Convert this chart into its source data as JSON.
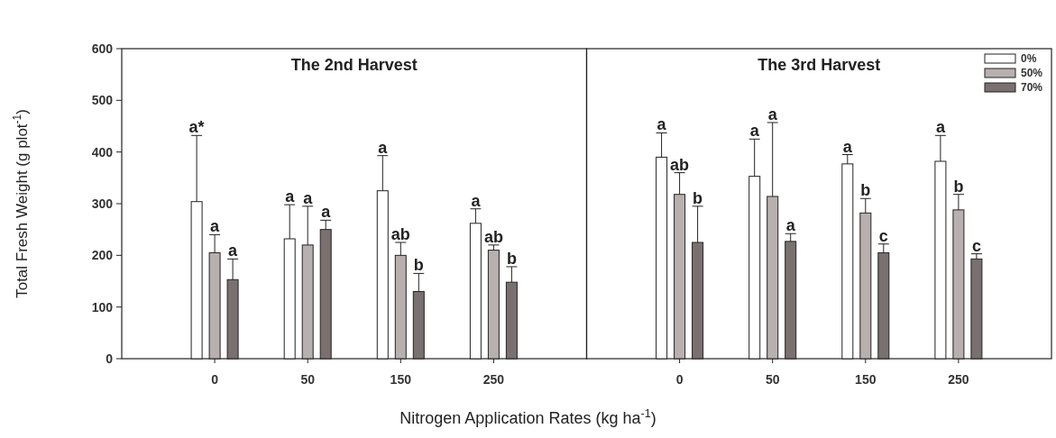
{
  "chart_data": [
    {
      "type": "bar",
      "title": "The 2nd Harvest",
      "xlabel": "Nitrogen Application Rates (kg ha$^{-1}$)",
      "ylabel": "Total Fresh Weight (g plot$^{-1}$)",
      "categories": [
        "0",
        "50",
        "150",
        "250"
      ],
      "ylim": [
        0,
        600
      ],
      "yticks": [
        0,
        100,
        200,
        300,
        400,
        500,
        600
      ],
      "grid": false,
      "legend": false,
      "series": [
        {
          "color": "#ffffff",
          "values": [
            304,
            232,
            325,
            262
          ],
          "errors": [
            128,
            66,
            68,
            28
          ]
        },
        {
          "color": "#b8b0ae",
          "values": [
            205,
            220,
            200,
            210
          ],
          "errors": [
            35,
            75,
            25,
            10
          ]
        },
        {
          "color": "#7a7070",
          "values": [
            153,
            250,
            130,
            148
          ],
          "errors": [
            40,
            18,
            35,
            30
          ]
        }
      ],
      "annotations": [
        "a*",
        "a",
        "a",
        "a",
        "a",
        "a",
        "a",
        "ab",
        "b",
        "a",
        "ab",
        "b"
      ]
    },
    {
      "type": "bar",
      "title": "The 3rd Harvest",
      "categories": [
        "0",
        "50",
        "150",
        "250"
      ],
      "ylim": [
        0,
        600
      ],
      "yticks": [
        0,
        100,
        200,
        300,
        400,
        500,
        600
      ],
      "tick_labels": "x",
      "grid": false,
      "legend": "top right",
      "series": [
        {
          "name": "0%",
          "color": "#ffffff",
          "values": [
            390,
            353,
            377,
            382
          ],
          "errors": [
            47,
            72,
            18,
            50
          ]
        },
        {
          "name": "50%",
          "color": "#b8b0ae",
          "values": [
            318,
            314,
            282,
            288
          ],
          "errors": [
            42,
            143,
            28,
            30
          ]
        },
        {
          "name": "70%",
          "color": "#7a7070",
          "values": [
            225,
            227,
            205,
            193
          ],
          "errors": [
            70,
            15,
            17,
            10
          ]
        }
      ],
      "annotations": [
        "a",
        "ab",
        "b",
        "a",
        "a",
        "a",
        "a",
        "b",
        "c",
        "a",
        "b",
        "c"
      ]
    }
  ]
}
